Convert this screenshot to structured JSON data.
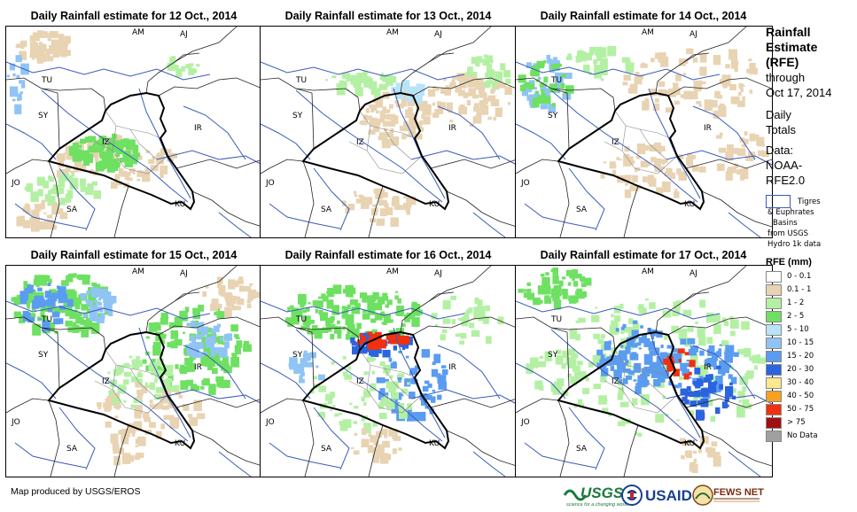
{
  "panels": [
    {
      "title": "Daily Rainfall estimate for 12 Oct., 2014"
    },
    {
      "title": "Daily Rainfall estimate for 13 Oct., 2014"
    },
    {
      "title": "Daily Rainfall estimate for 14 Oct., 2014"
    },
    {
      "title": "Daily Rainfall estimate for 15 Oct., 2014"
    },
    {
      "title": "Daily Rainfall estimate for 16 Oct., 2014"
    },
    {
      "title": "Daily Rainfall estimate for 17 Oct., 2014"
    }
  ],
  "country_labels": {
    "am": "AM",
    "aj": "AJ",
    "tu": "TU",
    "sy": "SY",
    "iz": "IZ",
    "ir": "IR",
    "jo": "JO",
    "sa": "SA",
    "ku": "KU"
  },
  "sidebar": {
    "title_lines": [
      "Rainfall",
      "Estimate",
      "(RFE)"
    ],
    "through": "through",
    "date": "Oct 17, 2014",
    "daily": "Daily",
    "totals": "Totals",
    "data_label": "Data:",
    "data_src1": "NOAA-",
    "data_src2": "RFE2.0",
    "basin_lines": [
      "Tigres",
      "& Euphrates",
      "Basins",
      "from USGS",
      "Hydro 1k data"
    ],
    "legend_title": "RFE (mm)",
    "legend": [
      {
        "label": "0 - 0.1",
        "color": "#ffffff"
      },
      {
        "label": "0.1 - 1",
        "color": "#e8d3b2"
      },
      {
        "label": "1 - 2",
        "color": "#b4f0a4"
      },
      {
        "label": "2 - 5",
        "color": "#6ee062"
      },
      {
        "label": "5 - 10",
        "color": "#b8e4f8"
      },
      {
        "label": "10 - 15",
        "color": "#90c4f4"
      },
      {
        "label": "15 - 20",
        "color": "#5a9cf0"
      },
      {
        "label": "20 - 30",
        "color": "#2a64e0"
      },
      {
        "label": "30 - 40",
        "color": "#fce890"
      },
      {
        "label": "40 - 50",
        "color": "#f8a020"
      },
      {
        "label": "50 - 75",
        "color": "#f03010"
      },
      {
        "label": "> 75",
        "color": "#a01010"
      },
      {
        "label": "No Data",
        "color": "#a0a0a0"
      }
    ]
  },
  "footer": "Map produced by USGS/EROS",
  "logos": {
    "usgs": "USGS",
    "usgs_tag": "science for a changing world",
    "usaid": "USAID",
    "fews": "FEWS NET"
  }
}
